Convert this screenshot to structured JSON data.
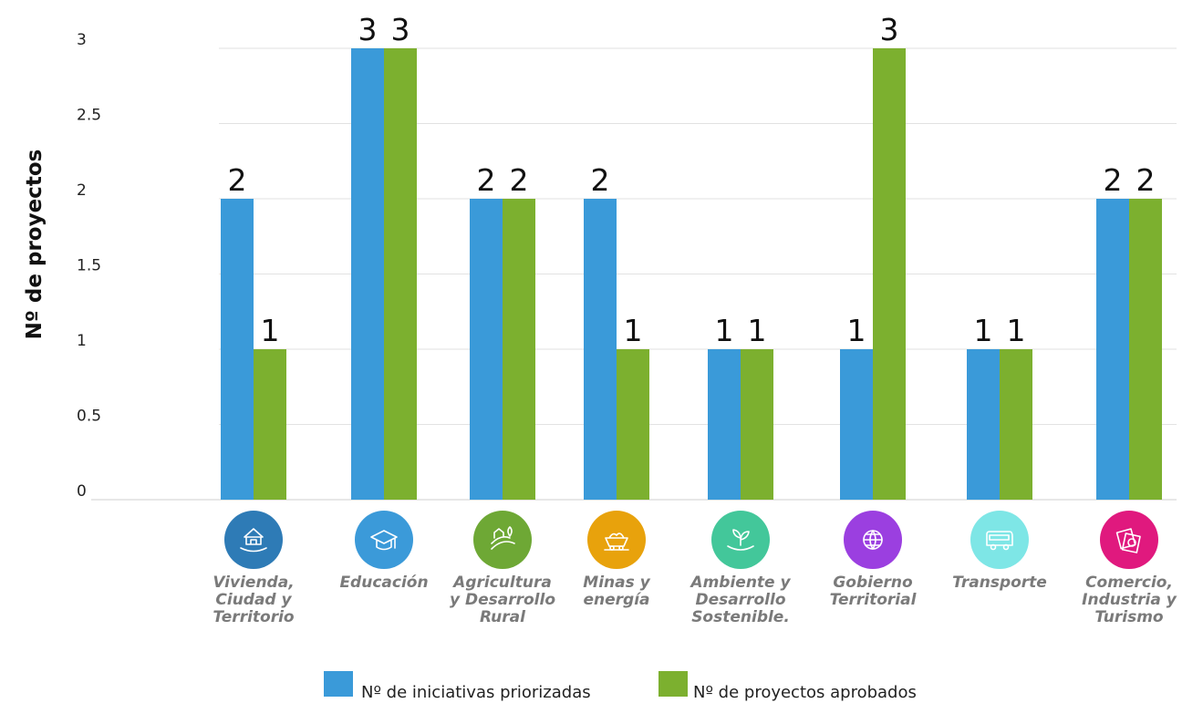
{
  "chart_data": {
    "type": "bar",
    "ylabel": "Nº de proyectos",
    "xlabel": "",
    "ylim": [
      0,
      3
    ],
    "yticks": [
      "0",
      "0.5",
      "1",
      "1.5",
      "2",
      "2.5",
      "3"
    ],
    "grid": true,
    "legend_position": "bottom",
    "categories": [
      {
        "label": "Vivienda, Ciudad y Territorio",
        "lines": [
          "Vivienda,",
          "Ciudad y",
          "Territorio"
        ],
        "icon": "house-hand-icon",
        "icon_color": "#2e7bb6"
      },
      {
        "label": "Educación",
        "lines": [
          "Educación"
        ],
        "icon": "graduation-cap-icon",
        "icon_color": "#3b9ad9"
      },
      {
        "label": "Agricultura y Desarrollo Rural",
        "lines": [
          "Agricultura",
          "y Desarrollo",
          "Rural"
        ],
        "icon": "farm-icon",
        "icon_color": "#6ea835"
      },
      {
        "label": "Minas y energía",
        "lines": [
          "Minas y",
          "energía"
        ],
        "icon": "mining-cart-icon",
        "icon_color": "#e8a20c"
      },
      {
        "label": "Ambiente y Desarrollo Sostenible.",
        "lines": [
          "Ambiente y",
          "Desarrollo",
          "Sostenible."
        ],
        "icon": "plant-hand-icon",
        "icon_color": "#43c79a"
      },
      {
        "label": "Gobierno Territorial",
        "lines": [
          "Gobierno",
          "Territorial"
        ],
        "icon": "globe-icon",
        "icon_color": "#9b3fe0"
      },
      {
        "label": "Transporte",
        "lines": [
          "Transporte"
        ],
        "icon": "bus-icon",
        "icon_color": "#7ee6e6"
      },
      {
        "label": "Comercio, Industria y Turismo",
        "lines": [
          "Comercio,",
          "Industria y",
          "Turismo"
        ],
        "icon": "photos-icon",
        "icon_color": "#e0197e"
      }
    ],
    "series": [
      {
        "name": "Nº de iniciativas priorizadas",
        "color": "#3a9ad9",
        "values": [
          2,
          3,
          2,
          2,
          1,
          1,
          1,
          2
        ]
      },
      {
        "name": "Nº de proyectos aprobados",
        "color": "#7cb02f",
        "values": [
          1,
          3,
          2,
          1,
          1,
          3,
          1,
          2
        ]
      }
    ]
  }
}
